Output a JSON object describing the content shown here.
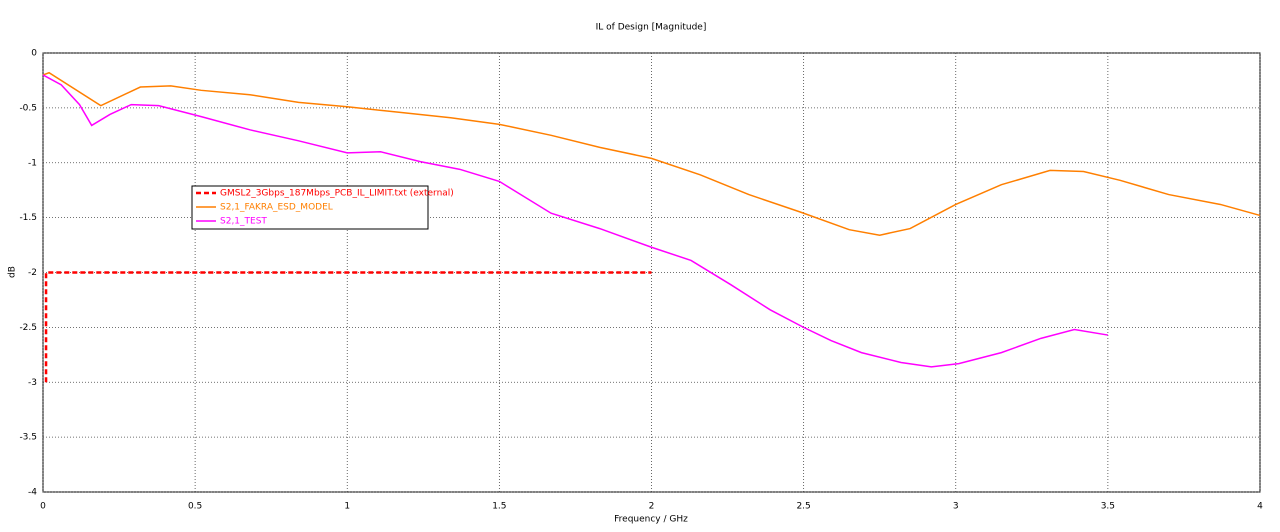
{
  "chart_data": {
    "type": "line",
    "title": "IL of Design [Magnitude]",
    "x_label": "Frequency / GHz",
    "y_label": "dB",
    "xlim": [
      0,
      4
    ],
    "xticks": [
      0,
      0.5,
      1,
      1.5,
      2,
      2.5,
      3,
      3.5,
      4
    ],
    "ylim": [
      -4,
      0
    ],
    "yticks": [
      0,
      -0.5,
      -1,
      -1.5,
      -2,
      -2.5,
      -3,
      -3.5,
      -4
    ],
    "grid": true,
    "legend": "upper left",
    "series": [
      {
        "name": "GMSL2_3Gbps_187Mbps_PCB_IL_LIMIT.txt (external)",
        "color": "#ff0000",
        "linestyle": "dashed",
        "x": [
          0.01,
          0.01,
          2
        ],
        "values": [
          -3,
          -2,
          -2
        ]
      },
      {
        "name": "S2,1_FAKRA_ESD_MODEL",
        "color": "#ff7f00",
        "linestyle": "solid",
        "x": [
          0,
          0.02,
          0.19,
          0.32,
          0.42,
          0.52,
          0.68,
          0.84,
          1.0,
          1.17,
          1.34,
          1.5,
          1.67,
          1.83,
          2.0,
          2.16,
          2.32,
          2.49,
          2.65,
          2.75,
          2.85,
          3.0,
          3.15,
          3.31,
          3.42,
          3.54,
          3.7,
          3.87,
          4.0
        ],
        "values": [
          -0.2,
          -0.18,
          -0.48,
          -0.31,
          -0.3,
          -0.34,
          -0.38,
          -0.45,
          -0.49,
          -0.54,
          -0.59,
          -0.65,
          -0.75,
          -0.86,
          -0.96,
          -1.11,
          -1.29,
          -1.45,
          -1.61,
          -1.66,
          -1.6,
          -1.38,
          -1.2,
          -1.07,
          -1.08,
          -1.16,
          -1.29,
          -1.38,
          -1.48
        ]
      },
      {
        "name": "S2,1_TEST",
        "color": "#ff00ff",
        "linestyle": "solid",
        "x": [
          0,
          0.06,
          0.12,
          0.16,
          0.22,
          0.29,
          0.38,
          0.52,
          0.68,
          0.84,
          1.0,
          1.11,
          1.24,
          1.37,
          1.5,
          1.67,
          1.83,
          2.0,
          2.13,
          2.26,
          2.39,
          2.5,
          2.59,
          2.69,
          2.82,
          2.92,
          3.01,
          3.15,
          3.28,
          3.39,
          3.5
        ],
        "values": [
          -0.2,
          -0.29,
          -0.47,
          -0.66,
          -0.56,
          -0.47,
          -0.48,
          -0.58,
          -0.7,
          -0.8,
          -0.91,
          -0.9,
          -0.99,
          -1.06,
          -1.17,
          -1.46,
          -1.6,
          -1.77,
          -1.89,
          -2.11,
          -2.34,
          -2.5,
          -2.62,
          -2.73,
          -2.82,
          -2.86,
          -2.83,
          -2.73,
          -2.6,
          -2.52,
          -2.57
        ]
      }
    ]
  }
}
